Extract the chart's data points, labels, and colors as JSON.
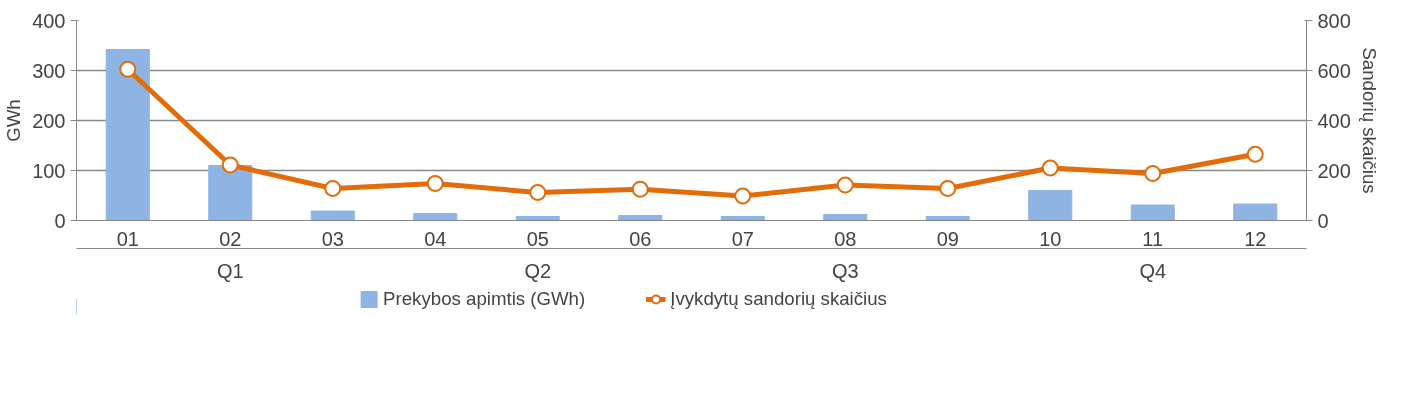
{
  "chart_data": {
    "type": "bar",
    "categories": [
      "01",
      "02",
      "03",
      "04",
      "05",
      "06",
      "07",
      "08",
      "09",
      "10",
      "11",
      "12"
    ],
    "annotations": [
      "Q1",
      "Q2",
      "Q3",
      "Q4"
    ],
    "ylabel": "GWh",
    "y2label": "Sandorių skaičius",
    "ylim": [
      0,
      400
    ],
    "yticks": [
      0,
      100,
      200,
      300,
      400
    ],
    "y2lim": [
      0,
      800
    ],
    "y2ticks": [
      0,
      200,
      400,
      600,
      800
    ],
    "grid": "y",
    "legend": "bottom",
    "series": [
      {
        "name": "Prekybos apimtis (GWh)",
        "color": "#8eb4e3",
        "values": [
          342,
          110,
          19,
          14,
          8,
          10,
          8,
          12,
          8,
          60,
          31,
          33
        ]
      },
      {
        "name": "Įvykdytų sandorių skaičius",
        "type": "line",
        "axis": "y2",
        "color": "#e36c09",
        "marker": "circle",
        "values": [
          605,
          222,
          128,
          148,
          112,
          125,
          98,
          142,
          128,
          210,
          188,
          265
        ]
      }
    ]
  }
}
